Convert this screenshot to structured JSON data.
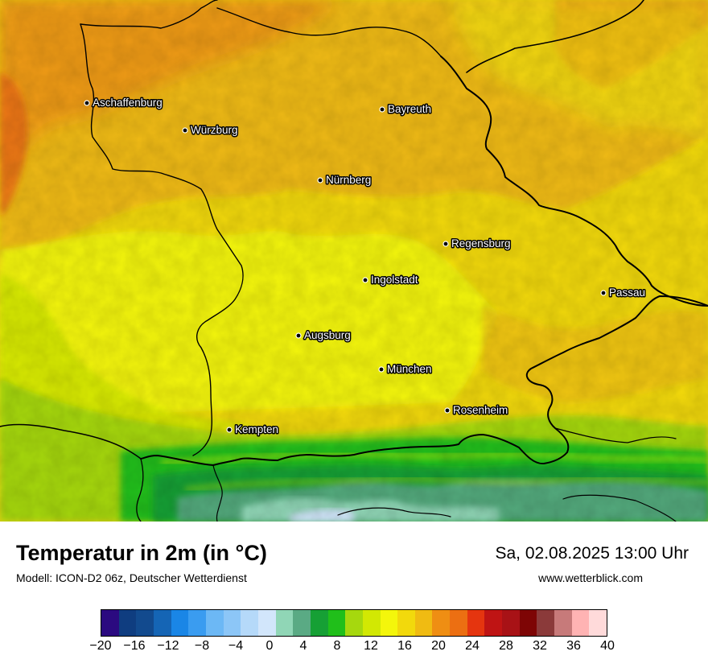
{
  "map": {
    "cities": [
      {
        "name": "Aschaffenburg",
        "label": "Aschaffenburg"
      },
      {
        "name": "Würzburg",
        "label": "Würzburg"
      },
      {
        "name": "Bayreuth",
        "label": "Bayreuth"
      },
      {
        "name": "Nürnberg",
        "label": "Nürnberg"
      },
      {
        "name": "Regensburg",
        "label": "Regensburg"
      },
      {
        "name": "Ingolstadt",
        "label": "Ingolstadt"
      },
      {
        "name": "Passau",
        "label": "Passau"
      },
      {
        "name": "Augsburg",
        "label": "Augsburg"
      },
      {
        "name": "München",
        "label": "München"
      },
      {
        "name": "Rosenheim",
        "label": "Rosenheim"
      },
      {
        "name": "Kempten",
        "label": "Kempten"
      }
    ]
  },
  "header": {
    "title": "Temperatur in 2m (in °C)",
    "subtitle": "Modell: ICON-D2 06z, Deutscher Wetterdienst",
    "datetime": "Sa, 02.08.2025 13:00 Uhr",
    "website": "www.wetterblick.com"
  },
  "legend": {
    "min": -20,
    "max": 40,
    "tick_labels": [
      "−20",
      "−16",
      "−12",
      "−8",
      "−4",
      "0",
      "4",
      "8",
      "12",
      "16",
      "20",
      "24",
      "28",
      "32",
      "36",
      "40"
    ],
    "colors": [
      "#2b0a80",
      "#0f3d80",
      "#124a8e",
      "#1565b5",
      "#1a86e6",
      "#3a9cf0",
      "#6cb8f5",
      "#8cc6f7",
      "#b5d9f9",
      "#d2e6fb",
      "#90d6b6",
      "#5aaa84",
      "#16a035",
      "#20bf1a",
      "#a6d80e",
      "#d2e803",
      "#f4f60b",
      "#f2d90c",
      "#f0bb12",
      "#ef8e13",
      "#ec6f12",
      "#e5350f",
      "#bf1414",
      "#a81216",
      "#7e0505",
      "#8b3a3a",
      "#c77a7a",
      "#ffb3b3",
      "#ffdada"
    ]
  }
}
